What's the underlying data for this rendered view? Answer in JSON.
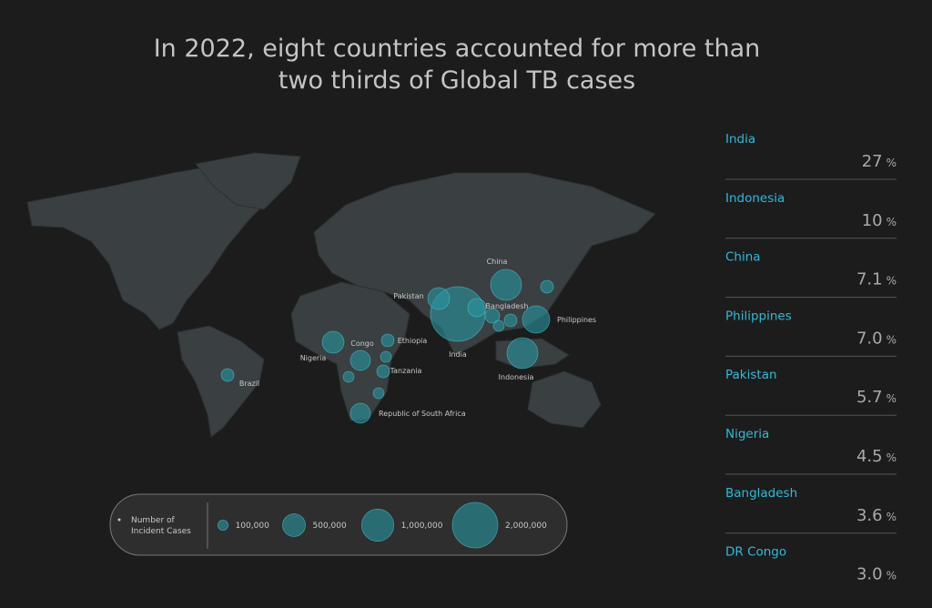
{
  "title_lines": [
    "In 2022, eight countries accounted for more than",
    "two thirds of Global TB cases"
  ],
  "unit": "%",
  "ranking": [
    {
      "country": "India",
      "share": "27"
    },
    {
      "country": "Indonesia",
      "share": "10"
    },
    {
      "country": "China",
      "share": "7.1"
    },
    {
      "country": "Philippines",
      "share": "7.0"
    },
    {
      "country": "Pakistan",
      "share": "5.7"
    },
    {
      "country": "Nigeria",
      "share": "4.5"
    },
    {
      "country": "Bangladesh",
      "share": "3.6"
    },
    {
      "country": "DR Congo",
      "share": "3.0"
    }
  ],
  "map": {
    "bubbles": [
      {
        "label": "India",
        "cases": 2880000
      },
      {
        "label": "China",
        "cases": 925000
      },
      {
        "label": "Indonesia",
        "cases": 925000
      },
      {
        "label": "Philippines",
        "cases": 720000
      },
      {
        "label": "Pakistan",
        "cases": 460000
      },
      {
        "label": "Bangladesh",
        "cases": 320000
      },
      {
        "label": "Nigeria",
        "cases": 460000
      },
      {
        "label": "Congo",
        "cases": 387000
      },
      {
        "label": "Republic of South Africa",
        "cases": 387000
      },
      {
        "label": "Ethiopia",
        "cases": 157000
      },
      {
        "label": "Tanzania",
        "cases": 157000
      },
      {
        "label": "Brazil",
        "cases": 157000
      },
      {
        "label": null,
        "cases": 205000
      },
      {
        "label": null,
        "cases": 157000
      },
      {
        "label": null,
        "cases": 157000
      },
      {
        "label": null,
        "cases": 115000
      },
      {
        "label": null,
        "cases": 115000
      },
      {
        "label": null,
        "cases": 115000
      },
      {
        "label": null,
        "cases": 115000
      }
    ]
  },
  "legend": {
    "title_lines": [
      "Number of",
      "Incident Cases"
    ],
    "items": [
      {
        "value": 100000,
        "label": "100,000"
      },
      {
        "value": 500000,
        "label": "500,000"
      },
      {
        "value": 1000000,
        "label": "1,000,000"
      },
      {
        "value": 2000000,
        "label": "2,000,000"
      }
    ]
  }
}
